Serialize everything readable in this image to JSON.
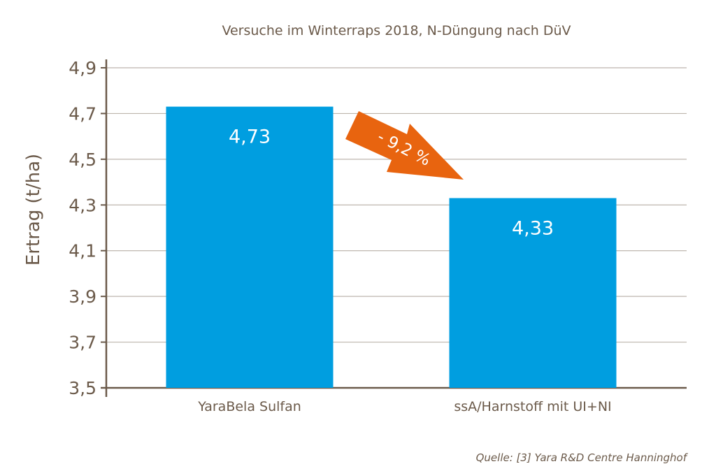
{
  "chart_data": {
    "type": "bar",
    "title": "Versuche im Winterraps 2018, N-Düngung nach DüV",
    "xlabel": "",
    "ylabel": "Ertrag (t/ha)",
    "ylim": [
      3.5,
      4.9
    ],
    "yticks": [
      "3,5",
      "3,7",
      "3,9",
      "4,1",
      "4,3",
      "4,5",
      "4,7",
      "4,9"
    ],
    "ytick_values": [
      3.5,
      3.7,
      3.9,
      4.1,
      4.3,
      4.5,
      4.7,
      4.9
    ],
    "categories": [
      "YaraBela Sulfan",
      "ssA/Harnstoff mit UI+NI"
    ],
    "values": [
      4.73,
      4.33
    ],
    "data_labels": [
      "4,73",
      "4,33"
    ],
    "grid": true,
    "annotation": "- 9,2 %",
    "source": "Quelle: [3] Yara R&D Centre Hanninghof",
    "colors": {
      "bar": "#009ee0",
      "arrow": "#e8640f",
      "text": "#6b5a4a",
      "grid": "#bdb5ad",
      "axis": "#6b5a4a"
    }
  }
}
